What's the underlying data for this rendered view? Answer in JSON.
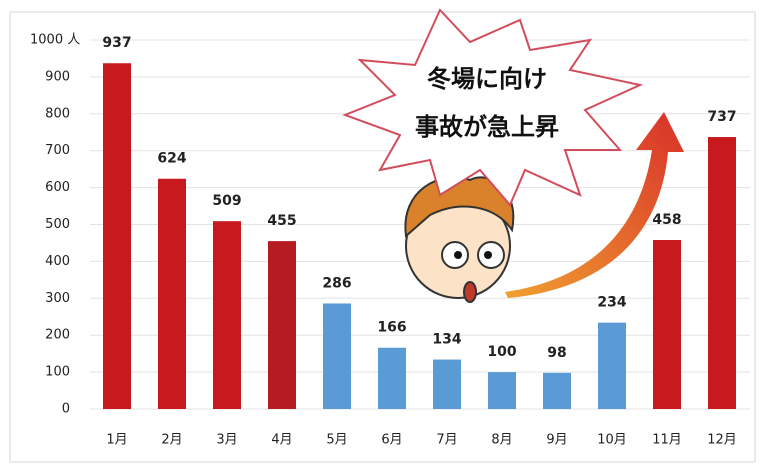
{
  "chart_data": {
    "type": "bar",
    "categories": [
      "1月",
      "2月",
      "3月",
      "4月",
      "5月",
      "6月",
      "7月",
      "8月",
      "9月",
      "10月",
      "11月",
      "12月"
    ],
    "values": [
      937,
      624,
      509,
      455,
      286,
      166,
      134,
      100,
      98,
      234,
      458,
      737
    ],
    "colors": [
      "#c8191f",
      "#c8191f",
      "#c8191f",
      "#b41c22",
      "#5b9bd5",
      "#5b9bd5",
      "#5b9bd5",
      "#5b9bd5",
      "#5b9bd5",
      "#5b9bd5",
      "#c8191f",
      "#c8191f"
    ],
    "ylim": [
      0,
      1000
    ],
    "yticks": [
      0,
      100,
      200,
      300,
      400,
      500,
      600,
      700,
      800,
      900,
      {
        "value": 1000,
        "label": "1000 人"
      }
    ],
    "grid": true,
    "annotation": [
      "冬場に向け",
      "事故が急上昇"
    ]
  }
}
